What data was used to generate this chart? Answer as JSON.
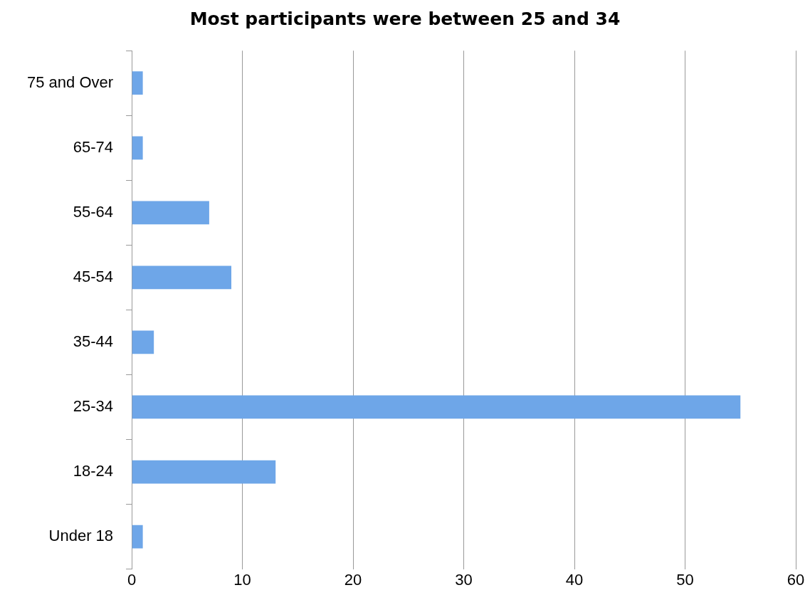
{
  "chart_data": {
    "type": "bar",
    "orientation": "horizontal",
    "title": "Most participants were between 25 and 34",
    "categories": [
      "75 and Over",
      "65-74",
      "55-64",
      "45-54",
      "35-44",
      "25-34",
      "18-24",
      "Under 18"
    ],
    "values": [
      1,
      1,
      7,
      9,
      2,
      55,
      13,
      1
    ],
    "color": "#6ea6e8",
    "xlim": [
      0,
      60
    ],
    "xticks": [
      0,
      10,
      20,
      30,
      40,
      50,
      60
    ],
    "grid": "x"
  }
}
